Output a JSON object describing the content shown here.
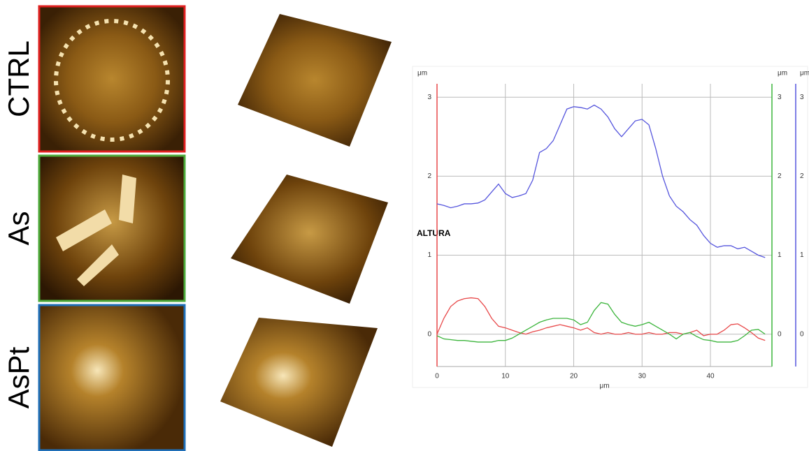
{
  "panels": [
    "CTRL",
    "As",
    "AsPt"
  ],
  "chart_data": {
    "type": "line",
    "xlabel": "μm",
    "ylabel": "ALTURA",
    "yunit": "μm",
    "y2unit": "μm",
    "y3unit": "μm",
    "x": [
      0,
      1,
      2,
      3,
      4,
      5,
      6,
      7,
      8,
      9,
      10,
      11,
      12,
      13,
      14,
      15,
      16,
      17,
      18,
      19,
      20,
      21,
      22,
      23,
      24,
      25,
      26,
      27,
      28,
      29,
      30,
      31,
      32,
      33,
      34,
      35,
      36,
      37,
      38,
      39,
      40,
      41,
      42,
      43,
      44,
      45,
      46,
      47,
      48
    ],
    "xlim": [
      0,
      49
    ],
    "xticks": [
      0,
      10,
      20,
      30,
      40
    ],
    "ylim": [
      -0.41,
      3.17
    ],
    "yticks": [
      0,
      1,
      2,
      3
    ],
    "ycolor": "#e8494a",
    "y2lim": [
      -0.41,
      3.17
    ],
    "y2ticks": [
      0,
      1,
      2,
      3
    ],
    "y2color": "#3cb53c",
    "y3lim": [
      -0.41,
      3.17
    ],
    "y3ticks": [
      0,
      1,
      2,
      3
    ],
    "y3color": "#5555dd",
    "grid": true,
    "series": [
      {
        "color": "#e8494a",
        "axis": "y",
        "values": [
          0,
          0.2,
          0.35,
          0.42,
          0.45,
          0.46,
          0.45,
          0.35,
          0.2,
          0.1,
          0.08,
          0.05,
          0.02,
          0,
          0.03,
          0.05,
          0.08,
          0.1,
          0.12,
          0.1,
          0.08,
          0.05,
          0.08,
          0.02,
          0,
          0.02,
          0,
          0,
          0.02,
          0,
          0,
          0.02,
          0,
          0,
          0.02,
          0.02,
          0,
          0.02,
          0.05,
          -0.02,
          0,
          0,
          0.05,
          0.12,
          0.13,
          0.08,
          0.02,
          -0.05,
          -0.08
        ]
      },
      {
        "color": "#3cb53c",
        "axis": "y2",
        "values": [
          -0.02,
          -0.06,
          -0.07,
          -0.08,
          -0.08,
          -0.09,
          -0.1,
          -0.1,
          -0.1,
          -0.08,
          -0.08,
          -0.05,
          0,
          0.05,
          0.1,
          0.15,
          0.18,
          0.2,
          0.2,
          0.2,
          0.18,
          0.12,
          0.15,
          0.3,
          0.4,
          0.38,
          0.25,
          0.15,
          0.12,
          0.1,
          0.12,
          0.15,
          0.1,
          0.05,
          0,
          -0.06,
          0,
          0.02,
          -0.03,
          -0.07,
          -0.08,
          -0.1,
          -0.1,
          -0.1,
          -0.08,
          -0.02,
          0.05,
          0.06,
          0
        ]
      },
      {
        "color": "#5555dd",
        "axis": "y3",
        "values": [
          1.65,
          1.63,
          1.6,
          1.62,
          1.65,
          1.65,
          1.66,
          1.7,
          1.8,
          1.9,
          1.78,
          1.73,
          1.75,
          1.78,
          1.95,
          2.3,
          2.35,
          2.45,
          2.65,
          2.85,
          2.88,
          2.87,
          2.85,
          2.9,
          2.85,
          2.75,
          2.6,
          2.5,
          2.6,
          2.7,
          2.72,
          2.65,
          2.35,
          2,
          1.75,
          1.62,
          1.55,
          1.45,
          1.38,
          1.25,
          1.15,
          1.1,
          1.12,
          1.12,
          1.08,
          1.1,
          1.05,
          1,
          0.97
        ]
      }
    ]
  }
}
